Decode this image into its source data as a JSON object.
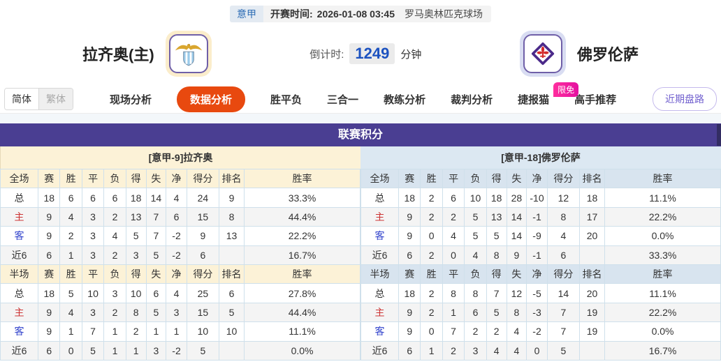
{
  "header": {
    "league_badge": "意甲",
    "kickoff_label": "开赛时间:",
    "kickoff_time": "2026-01-08 03:45",
    "venue": "罗马奥林匹克球场",
    "home_team": "拉齐奥(主)",
    "away_team": "佛罗伦萨",
    "countdown_label": "倒计时:",
    "countdown_value": "1249",
    "countdown_unit": "分钟"
  },
  "nav": {
    "lang_simplified": "简体",
    "lang_traditional": "繁体",
    "items": [
      {
        "label": "现场分析",
        "active": false
      },
      {
        "label": "数据分析",
        "active": true
      },
      {
        "label": "胜平负",
        "active": false
      },
      {
        "label": "三合一",
        "active": false
      },
      {
        "label": "教练分析",
        "active": false
      },
      {
        "label": "裁判分析",
        "active": false
      },
      {
        "label": "捷报猫",
        "active": false,
        "badge": "限免"
      },
      {
        "label": "高手推荐",
        "active": false
      }
    ],
    "recent_trends_button": "近期盘路"
  },
  "section": {
    "title": "联赛积分",
    "home_subtitle": "[意甲-9]拉齐奥",
    "away_subtitle": "[意甲-18]佛罗伦萨"
  },
  "table": {
    "full_header": [
      "全场",
      "赛",
      "胜",
      "平",
      "负",
      "得",
      "失",
      "净",
      "得分",
      "排名",
      "胜率"
    ],
    "half_header": [
      "半场",
      "赛",
      "胜",
      "平",
      "负",
      "得",
      "失",
      "净",
      "得分",
      "排名",
      "胜率"
    ],
    "home": {
      "full": [
        [
          "总",
          "18",
          "6",
          "6",
          "6",
          "18",
          "14",
          "4",
          "24",
          "9",
          "33.3%"
        ],
        [
          "主",
          "9",
          "4",
          "3",
          "2",
          "13",
          "7",
          "6",
          "15",
          "8",
          "44.4%"
        ],
        [
          "客",
          "9",
          "2",
          "3",
          "4",
          "5",
          "7",
          "-2",
          "9",
          "13",
          "22.2%"
        ],
        [
          "近6",
          "6",
          "1",
          "3",
          "2",
          "3",
          "5",
          "-2",
          "6",
          "",
          "16.7%"
        ]
      ],
      "half": [
        [
          "总",
          "18",
          "5",
          "10",
          "3",
          "10",
          "6",
          "4",
          "25",
          "6",
          "27.8%"
        ],
        [
          "主",
          "9",
          "4",
          "3",
          "2",
          "8",
          "5",
          "3",
          "15",
          "5",
          "44.4%"
        ],
        [
          "客",
          "9",
          "1",
          "7",
          "1",
          "2",
          "1",
          "1",
          "10",
          "10",
          "11.1%"
        ],
        [
          "近6",
          "6",
          "0",
          "5",
          "1",
          "1",
          "3",
          "-2",
          "5",
          "",
          "0.0%"
        ]
      ]
    },
    "away": {
      "full": [
        [
          "总",
          "18",
          "2",
          "6",
          "10",
          "18",
          "28",
          "-10",
          "12",
          "18",
          "11.1%"
        ],
        [
          "主",
          "9",
          "2",
          "2",
          "5",
          "13",
          "14",
          "-1",
          "8",
          "17",
          "22.2%"
        ],
        [
          "客",
          "9",
          "0",
          "4",
          "5",
          "5",
          "14",
          "-9",
          "4",
          "20",
          "0.0%"
        ],
        [
          "近6",
          "6",
          "2",
          "0",
          "4",
          "8",
          "9",
          "-1",
          "6",
          "",
          "33.3%"
        ]
      ],
      "half": [
        [
          "总",
          "18",
          "2",
          "8",
          "8",
          "7",
          "12",
          "-5",
          "14",
          "20",
          "11.1%"
        ],
        [
          "主",
          "9",
          "2",
          "1",
          "6",
          "5",
          "8",
          "-3",
          "7",
          "19",
          "22.2%"
        ],
        [
          "客",
          "9",
          "0",
          "7",
          "2",
          "2",
          "4",
          "-2",
          "7",
          "19",
          "0.0%"
        ],
        [
          "近6",
          "6",
          "1",
          "2",
          "3",
          "4",
          "4",
          "0",
          "5",
          "",
          "16.7%"
        ]
      ]
    }
  },
  "icons": {
    "home_logo": "lazio-eagle-crest-icon",
    "away_logo": "fiorentina-fleur-de-lis-icon"
  },
  "colors": {
    "section_header_purple": "#4a3e92",
    "home_theme_cream": "#fcf2d7",
    "away_theme_blue": "#dce8f2",
    "active_tab_orange": "#e8490f",
    "badge_pink": "#f31b9b",
    "countdown_blue": "#1c52c0",
    "home_row_red": "#cc3333",
    "away_row_blue": "#3344cc",
    "league_badge_blue": "#2e6db5"
  }
}
